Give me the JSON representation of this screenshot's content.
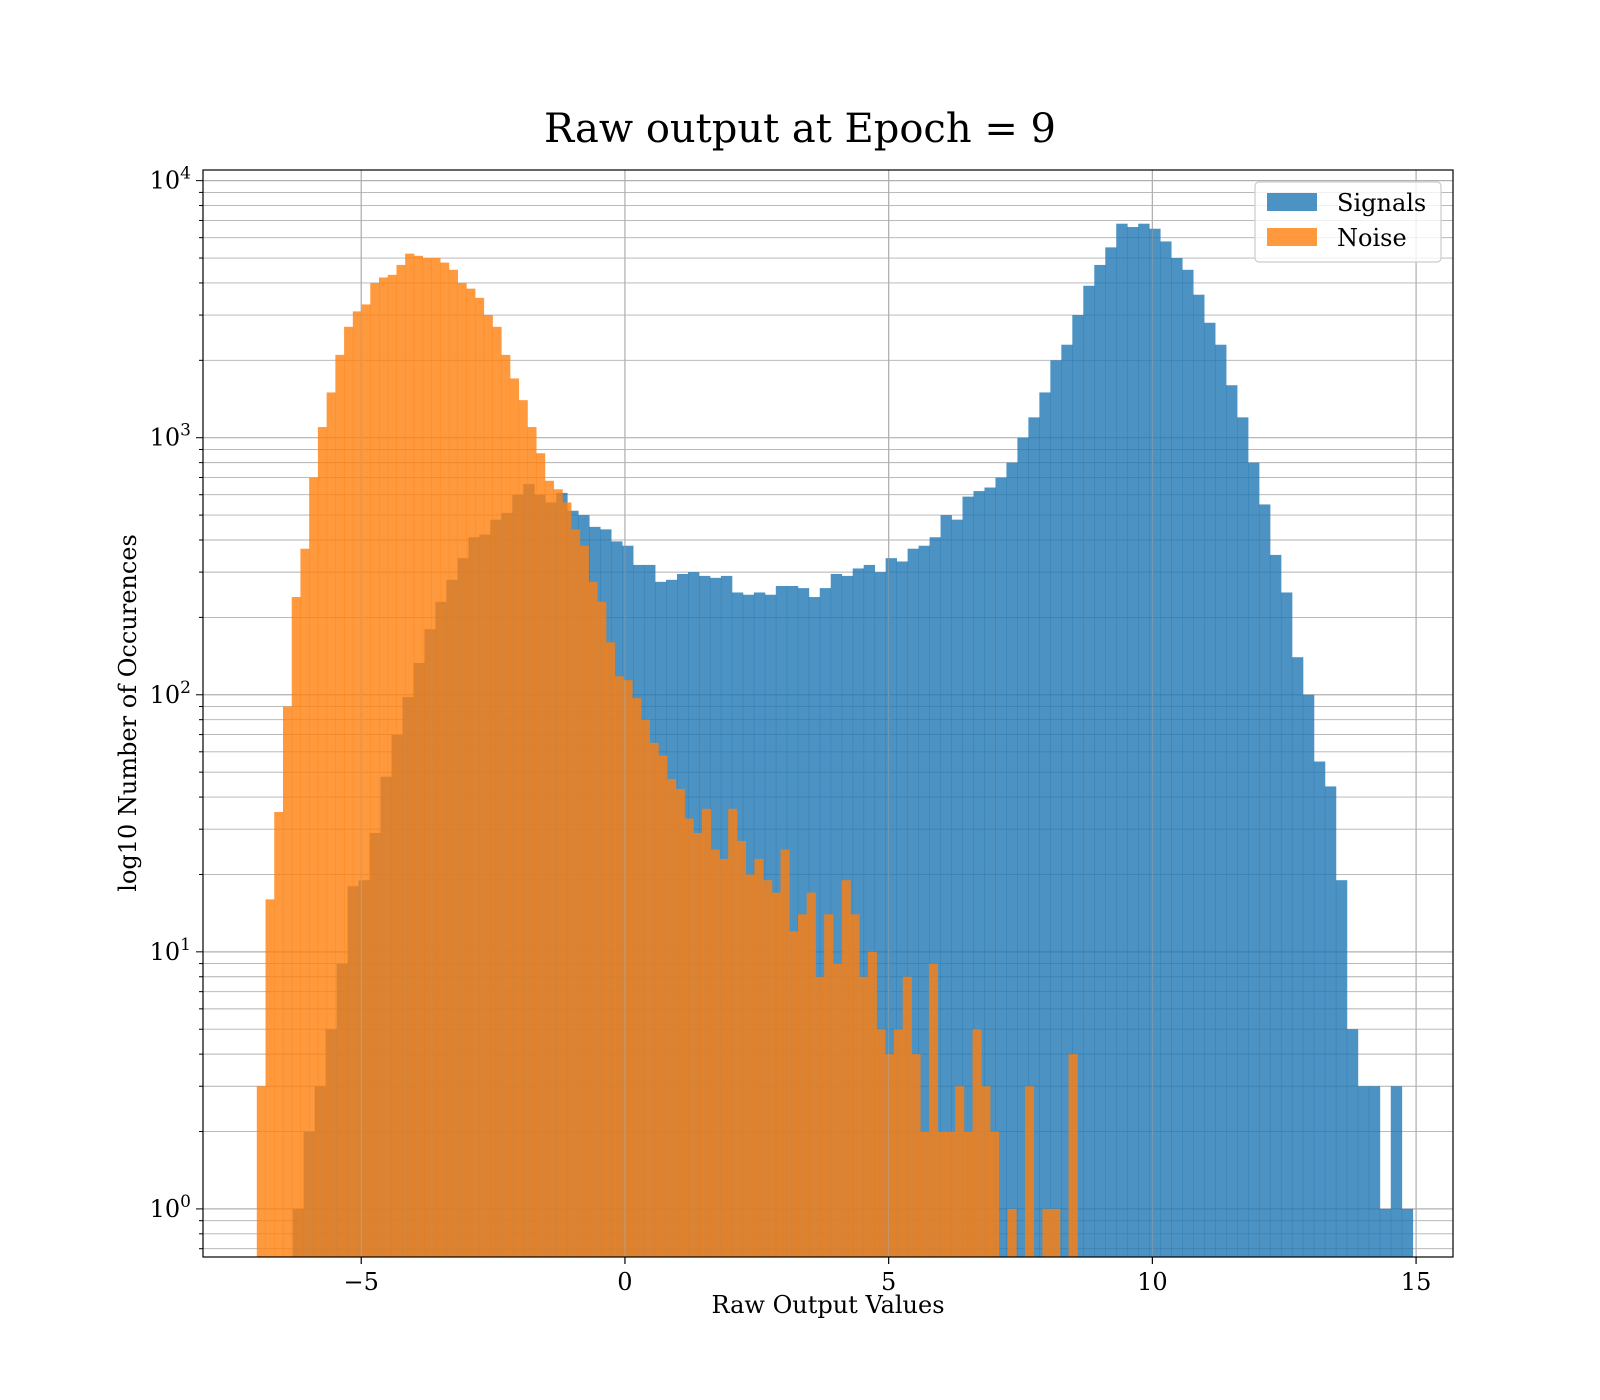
{
  "chart_data": {
    "type": "bar",
    "title": "Raw output at Epoch = 9",
    "xlabel": "Raw Output Values",
    "ylabel": "log10 Number of Occurences",
    "xlim": [
      -8.0,
      15.7
    ],
    "ylim": [
      0.65,
      11000
    ],
    "yscale": "log",
    "grid": true,
    "legend_position": "top-right",
    "x_ticks": [
      {
        "value": -5,
        "label": "−5"
      },
      {
        "value": 0,
        "label": "0"
      },
      {
        "value": 5,
        "label": "5"
      },
      {
        "value": 10,
        "label": "10"
      },
      {
        "value": 15,
        "label": "15"
      }
    ],
    "y_ticks": [
      {
        "value": 1,
        "label": "10",
        "exponent": "0"
      },
      {
        "value": 10,
        "label": "10",
        "exponent": "1"
      },
      {
        "value": 100,
        "label": "10",
        "exponent": "2"
      },
      {
        "value": 1000,
        "label": "10",
        "exponent": "3"
      },
      {
        "value": 10000,
        "label": "10",
        "exponent": "4"
      }
    ],
    "series": [
      {
        "name": "Signals",
        "color": "#1f77b4",
        "opacity": 0.8,
        "bin_start": -6.3,
        "bin_width": 0.2082,
        "values": [
          1,
          2,
          3,
          5,
          9,
          18,
          19,
          29,
          48,
          70,
          98,
          133,
          180,
          230,
          280,
          340,
          410,
          420,
          480,
          510,
          600,
          660,
          600,
          560,
          610,
          520,
          500,
          450,
          440,
          395,
          380,
          320,
          320,
          275,
          280,
          295,
          300,
          290,
          285,
          290,
          250,
          245,
          250,
          245,
          265,
          265,
          260,
          240,
          260,
          295,
          290,
          310,
          320,
          300,
          340,
          330,
          370,
          380,
          410,
          500,
          480,
          590,
          620,
          640,
          700,
          800,
          1000,
          1200,
          1500,
          2000,
          2300,
          3000,
          3900,
          4700,
          5500,
          6800,
          6600,
          6800,
          6500,
          5800,
          5000,
          4500,
          3600,
          2800,
          2300,
          1600,
          1200,
          800,
          550,
          350,
          250,
          140,
          100,
          55,
          44,
          19,
          5,
          3,
          3,
          1,
          3,
          1
        ]
      },
      {
        "name": "Noise",
        "color": "#ff7f0e",
        "opacity": 0.8,
        "bin_start": -6.98,
        "bin_width": 0.1655,
        "values": [
          3,
          16,
          35,
          90,
          240,
          370,
          700,
          1100,
          1500,
          2100,
          2700,
          3100,
          3300,
          4000,
          4200,
          4300,
          4700,
          5200,
          5100,
          5000,
          5000,
          4800,
          4500,
          4000,
          3800,
          3500,
          3000,
          2700,
          2100,
          1700,
          1400,
          1100,
          870,
          680,
          630,
          560,
          440,
          380,
          275,
          230,
          160,
          118,
          114,
          97,
          80,
          65,
          58,
          47,
          43,
          33,
          29,
          36,
          25,
          23,
          36,
          27,
          20,
          23,
          19,
          17,
          25,
          12,
          14,
          17,
          8,
          14,
          9,
          19,
          14,
          8,
          10,
          5,
          4,
          5,
          8,
          4,
          2,
          9,
          2,
          2,
          3,
          2,
          5,
          3,
          2,
          0,
          1,
          0,
          3,
          0,
          1,
          1,
          0,
          4,
          0,
          0,
          0,
          0,
          0
        ]
      }
    ]
  }
}
